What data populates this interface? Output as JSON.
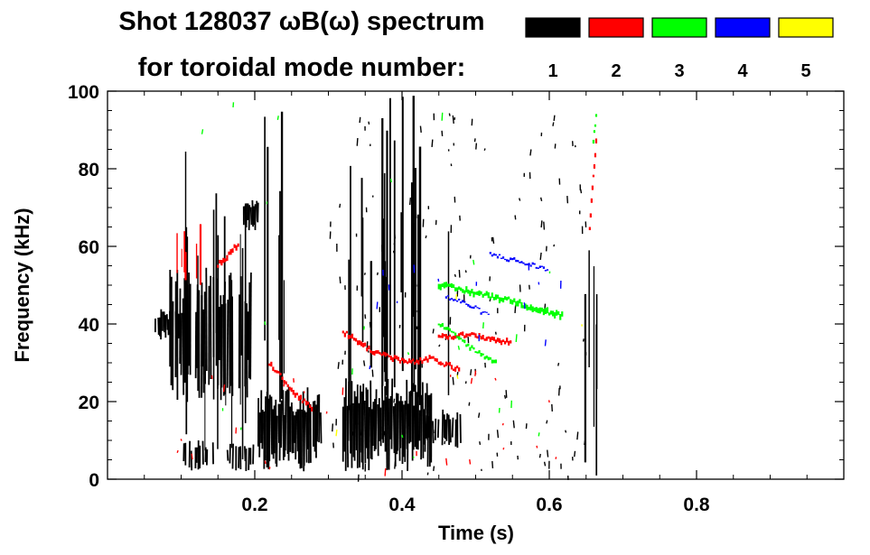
{
  "chart_data": {
    "type": "heatmap",
    "title_line1": "Shot 128037 ωB(ω) spectrum",
    "title_line2": "for toroidal mode number:",
    "xlabel": "Time (s)",
    "ylabel": "Frequency (kHz)",
    "xlim": [
      0.0,
      1.0
    ],
    "ylim": [
      0,
      100
    ],
    "x_ticks": [
      0.2,
      0.4,
      0.6,
      0.8
    ],
    "x_tick_labels": [
      "0.2",
      "0.4",
      "0.6",
      "0.8"
    ],
    "x_minor_step": 0.05,
    "y_ticks": [
      0,
      20,
      40,
      60,
      80,
      100
    ],
    "y_tick_labels": [
      "0",
      "20",
      "40",
      "60",
      "80",
      "100"
    ],
    "y_minor_step": 5,
    "legend": [
      {
        "label": "1",
        "color": "#000000"
      },
      {
        "label": "2",
        "color": "#ff0000"
      },
      {
        "label": "3",
        "color": "#00ff00"
      },
      {
        "label": "4",
        "color": "#0000ff"
      },
      {
        "label": "5",
        "color": "#ffff00"
      }
    ],
    "features": [
      {
        "mode": 1,
        "kind": "blob",
        "t": [
          0.085,
          0.195
        ],
        "f": [
          20,
          55
        ],
        "density": 0.55
      },
      {
        "mode": 1,
        "kind": "blob",
        "t": [
          0.065,
          0.1
        ],
        "f": [
          36,
          44
        ],
        "density": 0.7
      },
      {
        "mode": 1,
        "kind": "blob",
        "t": [
          0.1,
          0.2
        ],
        "f": [
          2,
          10
        ],
        "density": 0.25
      },
      {
        "mode": 1,
        "kind": "vlines",
        "t": [
          0.105,
          0.19
        ],
        "f": [
          5,
          90
        ],
        "count": 16
      },
      {
        "mode": 1,
        "kind": "blob",
        "t": [
          0.185,
          0.205
        ],
        "f": [
          64,
          72
        ],
        "density": 0.8
      },
      {
        "mode": 1,
        "kind": "blob",
        "t": [
          0.205,
          0.29
        ],
        "f": [
          2,
          24
        ],
        "density": 0.75
      },
      {
        "mode": 1,
        "kind": "vlines",
        "t": [
          0.21,
          0.24
        ],
        "f": [
          5,
          95
        ],
        "count": 6
      },
      {
        "mode": 1,
        "kind": "blob",
        "t": [
          0.32,
          0.44
        ],
        "f": [
          2,
          26
        ],
        "density": 0.9
      },
      {
        "mode": 1,
        "kind": "blob",
        "t": [
          0.43,
          0.48
        ],
        "f": [
          8,
          18
        ],
        "density": 0.6
      },
      {
        "mode": 1,
        "kind": "vlines",
        "t": [
          0.32,
          0.47
        ],
        "f": [
          15,
          100
        ],
        "count": 22
      },
      {
        "mode": 1,
        "kind": "scatter",
        "t": [
          0.3,
          0.65
        ],
        "f": [
          0,
          95
        ],
        "count": 170
      },
      {
        "mode": 1,
        "kind": "vlines",
        "t": [
          0.645,
          0.665
        ],
        "f": [
          0,
          78
        ],
        "count": 5
      },
      {
        "mode": 2,
        "kind": "vlines",
        "t": [
          0.085,
          0.13
        ],
        "f": [
          50,
          70
        ],
        "count": 6
      },
      {
        "mode": 2,
        "kind": "line",
        "points": [
          [
            0.15,
            55
          ],
          [
            0.18,
            61
          ]
        ],
        "width": 5
      },
      {
        "mode": 2,
        "kind": "line",
        "points": [
          [
            0.22,
            30
          ],
          [
            0.25,
            23
          ],
          [
            0.28,
            18
          ]
        ],
        "width": 4
      },
      {
        "mode": 2,
        "kind": "line",
        "points": [
          [
            0.32,
            38
          ],
          [
            0.36,
            33
          ],
          [
            0.41,
            30
          ],
          [
            0.44,
            31
          ],
          [
            0.48,
            28
          ]
        ],
        "width": 4
      },
      {
        "mode": 2,
        "kind": "line",
        "points": [
          [
            0.45,
            37
          ],
          [
            0.5,
            37
          ],
          [
            0.55,
            35
          ]
        ],
        "width": 4
      },
      {
        "mode": 2,
        "kind": "line",
        "points": [
          [
            0.655,
            65
          ],
          [
            0.66,
            78
          ],
          [
            0.665,
            90
          ]
        ],
        "width": 4
      },
      {
        "mode": 2,
        "kind": "scatter",
        "t": [
          0.09,
          0.62
        ],
        "f": [
          1,
          28
        ],
        "count": 26
      },
      {
        "mode": 3,
        "kind": "line",
        "points": [
          [
            0.45,
            50
          ],
          [
            0.5,
            48
          ],
          [
            0.55,
            46
          ],
          [
            0.58,
            44
          ],
          [
            0.62,
            42
          ]
        ],
        "width": 5
      },
      {
        "mode": 3,
        "kind": "line",
        "points": [
          [
            0.45,
            40
          ],
          [
            0.48,
            36
          ],
          [
            0.5,
            33
          ],
          [
            0.53,
            30
          ]
        ],
        "width": 3
      },
      {
        "mode": 3,
        "kind": "line",
        "points": [
          [
            0.66,
            87
          ],
          [
            0.665,
            96
          ]
        ],
        "width": 3
      },
      {
        "mode": 3,
        "kind": "scatter",
        "t": [
          0.1,
          0.65
        ],
        "f": [
          5,
          98
        ],
        "count": 22
      },
      {
        "mode": 4,
        "kind": "line",
        "points": [
          [
            0.46,
            47
          ],
          [
            0.49,
            45
          ],
          [
            0.52,
            42
          ]
        ],
        "width": 2
      },
      {
        "mode": 4,
        "kind": "line",
        "points": [
          [
            0.52,
            58
          ],
          [
            0.56,
            56
          ],
          [
            0.6,
            54
          ]
        ],
        "width": 2
      },
      {
        "mode": 4,
        "kind": "scatter",
        "t": [
          0.35,
          0.62
        ],
        "f": [
          25,
          60
        ],
        "count": 14
      },
      {
        "mode": 5,
        "kind": "scatter",
        "t": [
          0.3,
          0.65
        ],
        "f": [
          5,
          60
        ],
        "count": 4
      }
    ]
  }
}
